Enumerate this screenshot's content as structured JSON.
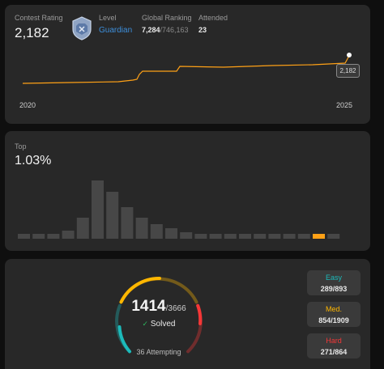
{
  "rating": {
    "label": "Contest Rating",
    "value": "2,182",
    "level_label": "Level",
    "level_value": "Guardian",
    "ranking_label": "Global Ranking",
    "ranking_value": "7,284",
    "ranking_total": "/746,163",
    "attended_label": "Attended",
    "attended_value": "23",
    "tooltip": "2,182",
    "x_start": "2020",
    "x_end": "2025"
  },
  "top": {
    "label": "Top",
    "value": "1.03%",
    "bars": [
      0.06,
      0.06,
      0.06,
      0.1,
      0.26,
      0.72,
      0.58,
      0.39,
      0.26,
      0.18,
      0.13,
      0.08,
      0.06,
      0.06,
      0.06,
      0.06,
      0.06,
      0.06,
      0.06,
      0.06,
      0.06,
      0.06
    ],
    "highlight_index": 20
  },
  "solved": {
    "solved": "1414",
    "total": "/3666",
    "solved_label": "Solved",
    "attempting": "36 Attempting",
    "easy_label": "Easy",
    "easy_value": "289/893",
    "medium_label": "Med.",
    "medium_value": "854/1909",
    "hard_label": "Hard",
    "hard_value": "271/864"
  },
  "colors": {
    "easy": "#1cbaba",
    "medium": "#ffb700",
    "hard": "#f63737",
    "accent": "#ffa116",
    "level": "#3d8eda"
  }
}
